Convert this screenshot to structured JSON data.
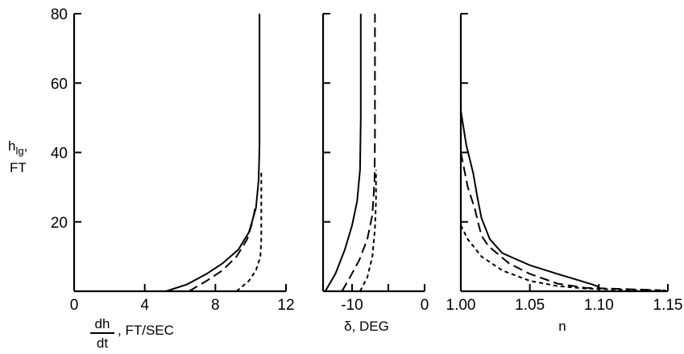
{
  "chart_data": [
    {
      "type": "line",
      "ylabel_top": "h",
      "ylabel_sub": "lg",
      "ylabel_suffix": ",",
      "ylabel_unit": "FT",
      "xlabel_num": "dh",
      "xlabel_den": "dt",
      "xlabel_unit": ", FT/SEC",
      "xlim": [
        0,
        12
      ],
      "ylim": [
        0,
        80
      ],
      "xticks": [
        0,
        4,
        8,
        12
      ],
      "xtick_labels": [
        "0",
        "4",
        "8",
        "12"
      ],
      "yticks": [
        0,
        20,
        40,
        60,
        80
      ],
      "ytick_labels": [
        "",
        "20",
        "40",
        "60",
        "80"
      ],
      "series": [
        {
          "style": "solid",
          "points": [
            [
              5.2,
              0
            ],
            [
              6.4,
              2
            ],
            [
              7.5,
              5
            ],
            [
              8.4,
              8
            ],
            [
              9.3,
              12
            ],
            [
              9.9,
              17
            ],
            [
              10.3,
              24
            ],
            [
              10.45,
              32
            ],
            [
              10.5,
              42
            ],
            [
              10.5,
              80
            ]
          ]
        },
        {
          "style": "longdash",
          "points": [
            [
              6.5,
              0
            ],
            [
              7.5,
              3
            ],
            [
              8.4,
              6
            ],
            [
              9.2,
              10
            ],
            [
              9.8,
              15
            ],
            [
              10.1,
              20
            ],
            [
              10.25,
              24
            ]
          ]
        },
        {
          "style": "shortdash",
          "points": [
            [
              9.2,
              0
            ],
            [
              9.9,
              3
            ],
            [
              10.3,
              6
            ],
            [
              10.55,
              10
            ],
            [
              10.6,
              15
            ],
            [
              10.6,
              25
            ],
            [
              10.6,
              35
            ]
          ]
        }
      ]
    },
    {
      "type": "line",
      "xlabel": "δ, DEG",
      "xlim": [
        -14,
        0
      ],
      "ylim": [
        0,
        80
      ],
      "xticks": [
        -14,
        -10,
        -5,
        0
      ],
      "xtick_labels": [
        "",
        "-10",
        "",
        "0"
      ],
      "yticks": [
        0,
        20,
        40,
        60,
        80
      ],
      "series": [
        {
          "style": "solid",
          "points": [
            [
              -13.7,
              0
            ],
            [
              -12.3,
              5
            ],
            [
              -11,
              12
            ],
            [
              -10,
              19
            ],
            [
              -9.3,
              26
            ],
            [
              -8.9,
              35
            ],
            [
              -8.8,
              50
            ],
            [
              -8.8,
              80
            ]
          ]
        },
        {
          "style": "longdash",
          "points": [
            [
              -11.4,
              0
            ],
            [
              -10.3,
              4
            ],
            [
              -9,
              9
            ],
            [
              -7.9,
              15
            ],
            [
              -7.2,
              22
            ],
            [
              -6.9,
              32
            ],
            [
              -6.85,
              45
            ],
            [
              -6.85,
              80
            ]
          ]
        },
        {
          "style": "shortdash",
          "points": [
            [
              -8.9,
              0
            ],
            [
              -7.9,
              4
            ],
            [
              -7.2,
              10
            ],
            [
              -6.85,
              18
            ],
            [
              -6.7,
              26
            ],
            [
              -6.7,
              35
            ]
          ]
        }
      ]
    },
    {
      "type": "line",
      "xlabel": "n",
      "xlim": [
        1.0,
        1.15
      ],
      "ylim": [
        0,
        80
      ],
      "xticks": [
        1.0,
        1.05,
        1.1,
        1.15
      ],
      "xtick_labels": [
        "1.00",
        "1.05",
        "1.10",
        "1.15"
      ],
      "yticks": [
        0,
        20,
        40,
        60,
        80
      ],
      "series": [
        {
          "style": "solid",
          "points": [
            [
              1.0,
              52
            ],
            [
              1.004,
              42
            ],
            [
              1.009,
              34
            ],
            [
              1.012,
              27
            ],
            [
              1.015,
              21
            ],
            [
              1.021,
              15
            ],
            [
              1.03,
              11
            ],
            [
              1.05,
              7.5
            ],
            [
              1.07,
              5
            ],
            [
              1.085,
              3.2
            ],
            [
              1.095,
              2
            ],
            [
              1.1,
              1.3
            ]
          ]
        },
        {
          "style": "longdash",
          "points": [
            [
              1.0,
              40
            ],
            [
              1.005,
              30
            ],
            [
              1.01,
              24
            ],
            [
              1.013,
              19
            ],
            [
              1.015,
              16
            ],
            [
              1.02,
              13
            ],
            [
              1.035,
              8
            ],
            [
              1.05,
              5
            ],
            [
              1.07,
              2.2
            ],
            [
              1.09,
              1
            ],
            [
              1.12,
              0.6
            ],
            [
              1.145,
              0.3
            ]
          ]
        },
        {
          "style": "shortdash",
          "points": [
            [
              1.0,
              19
            ],
            [
              1.005,
              15
            ],
            [
              1.015,
              10
            ],
            [
              1.03,
              6
            ],
            [
              1.05,
              3
            ],
            [
              1.07,
              1.5
            ],
            [
              1.09,
              0.8
            ],
            [
              1.12,
              0.4
            ],
            [
              1.15,
              0.2
            ]
          ]
        }
      ]
    }
  ]
}
